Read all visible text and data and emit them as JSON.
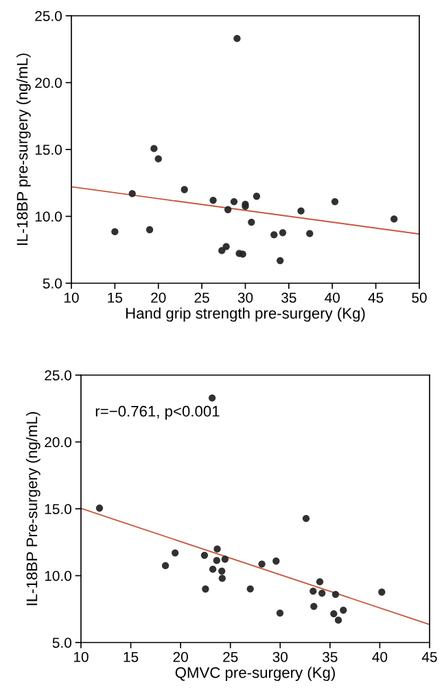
{
  "chart_data": [
    {
      "type": "scatter",
      "xlabel": "Hand grip strength pre-surgery (Kg)",
      "ylabel": "IL-18BP pre-surgery (ng/mL)",
      "xlim": [
        10,
        50
      ],
      "ylim": [
        5,
        25
      ],
      "xticks": [
        10,
        15,
        20,
        25,
        30,
        35,
        40,
        45,
        50
      ],
      "yticks": [
        {
          "value": 5,
          "label": "5.0"
        },
        {
          "value": 10,
          "label": "10.0"
        },
        {
          "value": 15,
          "label": "15.0"
        },
        {
          "value": 20,
          "label": "20.0"
        },
        {
          "value": 25,
          "label": "25.0"
        }
      ],
      "grid": false,
      "series": [
        {
          "marker": "circle",
          "color": "#262626",
          "x": [
            29.05,
            19.5,
            20.0,
            23.0,
            17.0,
            26.3,
            28.7,
            30.0,
            30.0,
            31.3,
            28.0,
            40.3,
            36.4,
            47.1,
            30.7,
            15.0,
            19.0,
            33.3,
            34.3,
            37.4,
            27.8,
            27.3,
            29.3,
            29.7,
            34.0
          ],
          "values": [
            23.3,
            15.07,
            14.3,
            12.0,
            11.7,
            11.2,
            11.1,
            10.9,
            10.75,
            11.5,
            10.5,
            11.1,
            10.4,
            9.8,
            9.56,
            8.85,
            9.0,
            8.62,
            8.78,
            8.71,
            7.74,
            7.44,
            7.22,
            7.17,
            6.69
          ]
        },
        {
          "type": "line",
          "color": "#c8553d",
          "x": [
            10,
            50
          ],
          "values": [
            12.21,
            8.68
          ]
        }
      ]
    },
    {
      "type": "scatter",
      "xlabel": "QMVC pre-surgery (Kg)",
      "ylabel": "IL-18BP Pre-surgery (ng/mL)",
      "annotations": [
        "r=−0.761, p<0.001"
      ],
      "xlim": [
        10,
        45
      ],
      "ylim": [
        5,
        25
      ],
      "xticks": [
        10,
        15,
        20,
        25,
        30,
        35,
        40,
        45
      ],
      "yticks": [
        {
          "value": 5,
          "label": "5.0"
        },
        {
          "value": 10,
          "label": "10.0"
        },
        {
          "value": 15,
          "label": "15.0"
        },
        {
          "value": 20,
          "label": "20.0"
        },
        {
          "value": 25,
          "label": "25.0"
        }
      ],
      "grid": false,
      "series": [
        {
          "marker": "circle",
          "color": "#262626",
          "x": [
            23.17,
            11.86,
            32.6,
            23.68,
            19.45,
            22.4,
            23.63,
            24.46,
            18.48,
            28.16,
            29.59,
            23.24,
            24.14,
            24.18,
            22.5,
            27.0,
            33.98,
            33.31,
            34.2,
            35.56,
            40.2,
            33.38,
            29.98,
            36.34,
            35.38,
            35.84
          ],
          "values": [
            23.29,
            15.05,
            14.28,
            11.99,
            11.7,
            11.52,
            11.13,
            11.23,
            10.75,
            10.87,
            11.09,
            10.48,
            10.34,
            9.8,
            9.0,
            9.01,
            9.54,
            8.84,
            8.69,
            8.6,
            8.77,
            7.7,
            7.2,
            7.42,
            7.15,
            6.67
          ]
        },
        {
          "type": "line",
          "color": "#c8553d",
          "x": [
            10,
            45
          ],
          "values": [
            15.03,
            6.35
          ]
        }
      ]
    }
  ]
}
